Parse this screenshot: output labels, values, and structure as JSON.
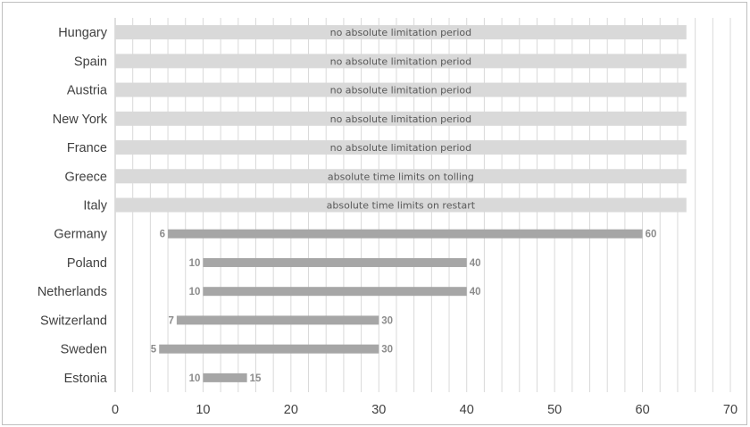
{
  "chart_data": {
    "type": "bar",
    "orientation": "horizontal",
    "title": "",
    "xlabel": "",
    "ylabel": "",
    "xlim": [
      0,
      70
    ],
    "xticks": [
      0,
      10,
      20,
      30,
      40,
      50,
      60,
      70
    ],
    "grid": "vertical minor gridlines every 2 units",
    "categories": [
      "Hungary",
      "Spain",
      "Austria",
      "New York",
      "France",
      "Greece",
      "Italy",
      "Germany",
      "Poland",
      "Netherlands",
      "Switzerland",
      "Sweden",
      "Estonia"
    ],
    "band_rows": [
      {
        "category": "Hungary",
        "start": 0,
        "end": 65,
        "text": "no absolute limitation period"
      },
      {
        "category": "Spain",
        "start": 0,
        "end": 65,
        "text": "no absolute limitation period"
      },
      {
        "category": "Austria",
        "start": 0,
        "end": 65,
        "text": "no absolute limitation period"
      },
      {
        "category": "New York",
        "start": 0,
        "end": 65,
        "text": "no absolute limitation period"
      },
      {
        "category": "France",
        "start": 0,
        "end": 65,
        "text": "no absolute limitation period"
      },
      {
        "category": "Greece",
        "start": 0,
        "end": 65,
        "text": "absolute time limits on tolling"
      },
      {
        "category": "Italy",
        "start": 0,
        "end": 65,
        "text": "absolute time limits on restart"
      }
    ],
    "range_rows": [
      {
        "category": "Germany",
        "start": 6,
        "end": 60,
        "start_label": "6",
        "end_label": "60"
      },
      {
        "category": "Poland",
        "start": 10,
        "end": 40,
        "start_label": "10",
        "end_label": "40"
      },
      {
        "category": "Netherlands",
        "start": 10,
        "end": 40,
        "start_label": "10",
        "end_label": "40"
      },
      {
        "category": "Switzerland",
        "start": 7,
        "end": 30,
        "start_label": "7",
        "end_label": "30"
      },
      {
        "category": "Sweden",
        "start": 5,
        "end": 30,
        "start_label": "5",
        "end_label": "30"
      },
      {
        "category": "Estonia",
        "start": 10,
        "end": 15,
        "start_label": "10",
        "end_label": "15"
      }
    ],
    "colors": {
      "band": "#d9d9d9",
      "bar": "#a6a6a6",
      "grid": "#d9d9d9",
      "axis": "#bfbfbf"
    }
  }
}
